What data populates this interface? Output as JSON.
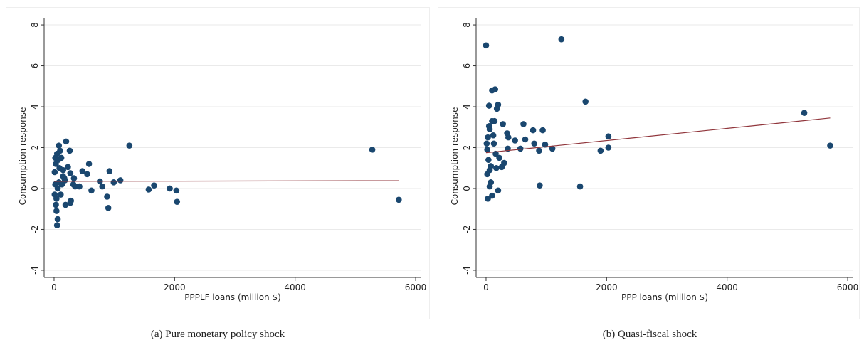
{
  "chart_data": [
    {
      "type": "scatter",
      "caption": "(a) Pure monetary policy shock",
      "xlabel": "PPPLF loans (million $)",
      "ylabel": "Consumption response",
      "color": "#1a476f",
      "x": [
        5280,
        5720,
        1250,
        1920,
        2030,
        2040,
        1660,
        1570,
        1100,
        990,
        920,
        880,
        900,
        760,
        800,
        620,
        580,
        550,
        470,
        350,
        330,
        270,
        260,
        280,
        270,
        230,
        200,
        190,
        150,
        120,
        100,
        80,
        60,
        50,
        40,
        30,
        20,
        10,
        30,
        50,
        80,
        110,
        150,
        170,
        10,
        20,
        60,
        90,
        130,
        40,
        70,
        180,
        320,
        420
      ],
      "values": [
        1.9,
        -0.55,
        2.1,
        0,
        -0.1,
        -0.65,
        0.15,
        -0.05,
        0.4,
        0.3,
        0.85,
        -0.4,
        -0.95,
        0.35,
        0.1,
        -0.1,
        1.2,
        0.7,
        0.85,
        0.1,
        0.5,
        0.75,
        1.85,
        -0.6,
        -0.7,
        1.05,
        2.3,
        -0.8,
        0.6,
        1.5,
        1.85,
        2.1,
        -1.5,
        -1.8,
        -1.1,
        -0.8,
        0.2,
        0.8,
        1.2,
        1.7,
        0.3,
        -0.3,
        0.9,
        0.5,
        -0.3,
        1.5,
        0,
        1,
        0.2,
        -0.5,
        1.4,
        0.4,
        0.2,
        0.1
      ],
      "fit": {
        "color": "#90353b",
        "x": [
          0,
          5720
        ],
        "values": [
          0.35,
          0.38
        ]
      },
      "xlim": [
        -165,
        6094
      ],
      "ylim": [
        -4.35,
        8.35
      ],
      "xticks": [
        0,
        2000,
        4000,
        6000
      ],
      "yticks": [
        -4,
        -2,
        0,
        2,
        4,
        6,
        8
      ],
      "grid": true
    },
    {
      "type": "scatter",
      "caption": "(b) Quasi-fiscal shock",
      "xlabel": "PPP loans (million $)",
      "ylabel": "Consumption response",
      "color": "#1a476f",
      "x": [
        0,
        1250,
        100,
        150,
        50,
        200,
        1650,
        5280,
        5710,
        2030,
        2030,
        1900,
        1100,
        980,
        940,
        880,
        780,
        800,
        620,
        650,
        570,
        480,
        370,
        350,
        360,
        280,
        300,
        260,
        200,
        180,
        140,
        100,
        60,
        30,
        20,
        40,
        60,
        80,
        30,
        100,
        20,
        130,
        160,
        220,
        890,
        1560,
        50,
        120,
        80,
        170,
        10,
        60
      ],
      "values": [
        7,
        7.3,
        4.8,
        4.85,
        4.05,
        4.1,
        4.25,
        3.7,
        2.1,
        2.55,
        2,
        1.85,
        1.95,
        2.15,
        2.85,
        1.85,
        2.85,
        2.2,
        3.15,
        2.4,
        1.95,
        2.35,
        2.5,
        2.7,
        1.95,
        3.15,
        1.25,
        1.05,
        -0.1,
        3.9,
        3.3,
        3.3,
        2.9,
        2.5,
        1.9,
        1.4,
        0.9,
        0.3,
        -0.5,
        -0.35,
        0.7,
        2.2,
        1.7,
        1.5,
        0.15,
        0.1,
        3.05,
        2.6,
        1.1,
        1,
        2.2,
        0.1
      ],
      "fit": {
        "color": "#90353b",
        "x": [
          0,
          5710
        ],
        "values": [
          1.75,
          3.45
        ]
      },
      "xlim": [
        -165,
        6094
      ],
      "ylim": [
        -4.35,
        8.35
      ],
      "xticks": [
        0,
        2000,
        4000,
        6000
      ],
      "yticks": [
        -4,
        -2,
        0,
        2,
        4,
        6,
        8
      ],
      "grid": true
    }
  ]
}
